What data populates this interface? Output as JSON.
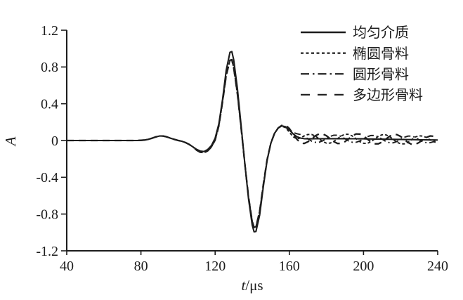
{
  "figure": {
    "background_color": "#ffffff",
    "ink_color": "#1c1c1c"
  },
  "chart_data": {
    "type": "line",
    "title": "",
    "xlabel": "t/μs",
    "xlabel_symbol": "t",
    "xlabel_unit": "/μs",
    "ylabel": "A",
    "xlim": [
      40,
      240
    ],
    "ylim": [
      -1.2,
      1.2
    ],
    "x_ticks": [
      40,
      80,
      120,
      160,
      200,
      240
    ],
    "y_ticks": [
      1.2,
      0.8,
      0.4,
      0,
      -0.4,
      -0.8,
      -1.2
    ],
    "y_tick_labels": [
      "1.2",
      "0.8",
      "0.4",
      "0",
      "-0.4",
      "-0.8",
      "-1.2"
    ],
    "grid": false,
    "legend_position": "top-right",
    "x": [
      40,
      48,
      56,
      64,
      72,
      78,
      80,
      82,
      84,
      86,
      88,
      90,
      92,
      94,
      96,
      98,
      100,
      102,
      104,
      106,
      108,
      110,
      112,
      114,
      116,
      118,
      120,
      122,
      124,
      126,
      128,
      129,
      130,
      132,
      134,
      136,
      138,
      140,
      141,
      142,
      144,
      146,
      148,
      150,
      152,
      154,
      156,
      158,
      160,
      162,
      164,
      166,
      168,
      170,
      172,
      174,
      176,
      178,
      180,
      182,
      184,
      186,
      188,
      190,
      192,
      194,
      196,
      198,
      200,
      202,
      204,
      206,
      208,
      210,
      212,
      214,
      216,
      218,
      220,
      222,
      224,
      226,
      228,
      230,
      232,
      234,
      236,
      238,
      240
    ],
    "series": [
      {
        "name": "均匀介质",
        "key": "homogeneous-medium",
        "line_style": "solid",
        "values": [
          0,
          0,
          0,
          0,
          0,
          0,
          0.002,
          0.005,
          0.013,
          0.025,
          0.039,
          0.049,
          0.049,
          0.039,
          0.025,
          0.012,
          0.001,
          -0.008,
          -0.022,
          -0.042,
          -0.069,
          -0.096,
          -0.115,
          -0.12,
          -0.098,
          -0.055,
          0.025,
          0.181,
          0.449,
          0.766,
          0.959,
          0.968,
          0.88,
          0.566,
          0.161,
          -0.247,
          -0.633,
          -0.921,
          -0.993,
          -0.99,
          -0.81,
          -0.502,
          -0.22,
          -0.033,
          0.077,
          0.137,
          0.16,
          0.15,
          0.115,
          0.073,
          0.042,
          0.027,
          0.02,
          0.018,
          0.018,
          0.019,
          0.019,
          0.02,
          0.02,
          0.02,
          0.02,
          0.02,
          0.02,
          0.02,
          0.019,
          0.019,
          0.019,
          0.018,
          0.018,
          0.017,
          0.017,
          0.016,
          0.016,
          0.015,
          0.014,
          0.014,
          0.013,
          0.012,
          0.012,
          0.011,
          0.01,
          0.01,
          0.009,
          0.008,
          0.008,
          0.007,
          0.006,
          0.006,
          0.005
        ]
      },
      {
        "name": "椭圆骨料",
        "key": "elliptical-aggregate",
        "line_style": "fine-dash",
        "values": [
          0,
          0,
          0,
          0,
          0,
          0,
          0.002,
          0.005,
          0.013,
          0.025,
          0.039,
          0.049,
          0.049,
          0.039,
          0.025,
          0.012,
          0.001,
          -0.008,
          -0.022,
          -0.042,
          -0.069,
          -0.105,
          -0.128,
          -0.133,
          -0.112,
          -0.07,
          0.005,
          0.16,
          0.423,
          0.708,
          0.873,
          0.878,
          0.794,
          0.508,
          0.137,
          -0.247,
          -0.612,
          -0.88,
          -0.945,
          -0.94,
          -0.769,
          -0.479,
          -0.212,
          -0.031,
          0.077,
          0.137,
          0.16,
          0.14,
          0.091,
          0.041,
          0.018,
          0.027,
          0.05,
          0.066,
          0.066,
          0.049,
          0.019,
          -0.01,
          -0.028,
          -0.028,
          -0.01,
          0.02,
          0.05,
          0.068,
          0.067,
          0.049,
          0.019,
          -0.012,
          -0.03,
          -0.031,
          -0.013,
          0.016,
          0.045,
          0.063,
          0.062,
          0.044,
          0.013,
          -0.018,
          -0.036,
          -0.037,
          -0.02,
          0.01,
          0.039,
          0.051,
          0.048,
          0.031,
          0.006,
          -0.015,
          -0.024
        ]
      },
      {
        "name": "圆形骨料",
        "key": "circular-aggregate",
        "line_style": "dash-dot",
        "values": [
          0,
          0,
          0,
          0,
          0,
          0,
          0.002,
          0.005,
          0.013,
          0.025,
          0.039,
          0.049,
          0.049,
          0.039,
          0.025,
          0.012,
          0.001,
          -0.008,
          -0.022,
          -0.042,
          -0.069,
          -0.105,
          -0.128,
          -0.133,
          -0.112,
          -0.07,
          0.005,
          0.16,
          0.423,
          0.708,
          0.873,
          0.878,
          0.794,
          0.508,
          0.137,
          -0.247,
          -0.612,
          -0.88,
          -0.945,
          -0.94,
          -0.769,
          -0.479,
          -0.212,
          -0.031,
          0.077,
          0.137,
          0.154,
          0.142,
          0.115,
          0.089,
          0.074,
          0.065,
          0.044,
          0.018,
          -0.006,
          -0.019,
          -0.019,
          -0.004,
          0.02,
          0.044,
          0.058,
          0.058,
          0.044,
          0.02,
          -0.005,
          -0.019,
          -0.019,
          -0.005,
          0.018,
          0.041,
          0.055,
          0.054,
          0.04,
          0.015,
          -0.01,
          -0.024,
          -0.025,
          -0.011,
          0.012,
          0.035,
          0.048,
          0.048,
          0.033,
          0.008,
          -0.012,
          -0.025,
          -0.024,
          -0.011,
          0.005
        ]
      },
      {
        "name": "多边形骨料",
        "key": "polygonal-aggregate",
        "line_style": "long-dash",
        "values": [
          0,
          0,
          0,
          0,
          0,
          0,
          0.002,
          0.005,
          0.013,
          0.025,
          0.039,
          0.049,
          0.049,
          0.039,
          0.025,
          0.012,
          0.001,
          -0.008,
          -0.022,
          -0.042,
          -0.069,
          -0.105,
          -0.128,
          -0.133,
          -0.112,
          -0.07,
          0.005,
          0.16,
          0.423,
          0.708,
          0.873,
          0.878,
          0.794,
          0.508,
          0.137,
          -0.247,
          -0.612,
          -0.88,
          -0.945,
          -0.94,
          -0.769,
          -0.479,
          -0.212,
          -0.031,
          0.077,
          0.137,
          0.165,
          0.167,
          0.131,
          0.073,
          0.015,
          -0.025,
          -0.032,
          -0.014,
          0.018,
          0.051,
          0.071,
          0.072,
          0.052,
          0.02,
          -0.012,
          -0.032,
          -0.032,
          -0.012,
          0.019,
          0.051,
          0.071,
          0.07,
          0.05,
          0.017,
          -0.015,
          -0.036,
          -0.036,
          -0.017,
          0.014,
          0.046,
          0.065,
          0.064,
          0.044,
          0.011,
          -0.022,
          -0.042,
          -0.043,
          -0.021,
          0.008,
          0.035,
          0.05,
          0.046,
          0.027
        ]
      }
    ]
  }
}
